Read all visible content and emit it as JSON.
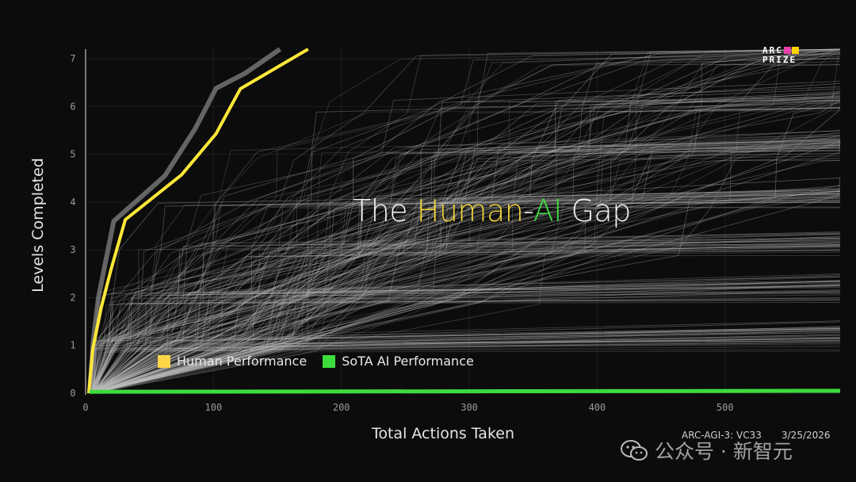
{
  "chart_data": {
    "type": "line",
    "title_parts": {
      "pre": "The ",
      "human": "Human",
      "dash": "-",
      "ai": "AI",
      "post": " Gap"
    },
    "xlabel": "Total Actions Taken",
    "ylabel": "Levels Completed",
    "xlim": [
      0,
      590
    ],
    "ylim": [
      0,
      7.2
    ],
    "xticks": [
      "0",
      "100",
      "200",
      "300",
      "400",
      "500"
    ],
    "yticks": [
      "0",
      "1",
      "2",
      "3",
      "4",
      "5",
      "6",
      "7"
    ],
    "grid": true,
    "legend_placement": "bottom-left",
    "series": [
      {
        "name": "Human Performance",
        "color": "#ffe838",
        "x": [
          2.5,
          5.6,
          12,
          20,
          31,
          75,
          102,
          121,
          174
        ],
        "y": [
          0,
          0.93,
          1.77,
          2.6,
          3.63,
          4.57,
          5.43,
          6.37,
          7.2
        ]
      },
      {
        "name": "SoTA AI Performance",
        "color": "#3ddc3d",
        "x": [
          3,
          590
        ],
        "y": [
          0.03,
          0.05
        ]
      }
    ],
    "human_envelope": {
      "color": "#8a8a8a",
      "x": [
        3,
        6,
        10,
        22,
        62,
        86,
        102,
        125,
        152
      ],
      "y": [
        0,
        1.1,
        2.0,
        3.6,
        4.55,
        5.55,
        6.38,
        6.7,
        7.2
      ]
    },
    "legend": [
      {
        "label": "Human Performance",
        "color": "#ffd54a"
      },
      {
        "label": "SoTA AI Performance",
        "color": "#3ddc3d"
      }
    ]
  },
  "logo": {
    "line1": "ARC",
    "line2": "PRIZE",
    "colors": [
      "#e83fa8",
      "#ffd400"
    ]
  },
  "footer": {
    "game": "ARC-AGI-3: VC33",
    "date": "3/25/2026"
  },
  "watermark": {
    "text": "公众号 · 新智元",
    "icon": "wechat-icon"
  }
}
